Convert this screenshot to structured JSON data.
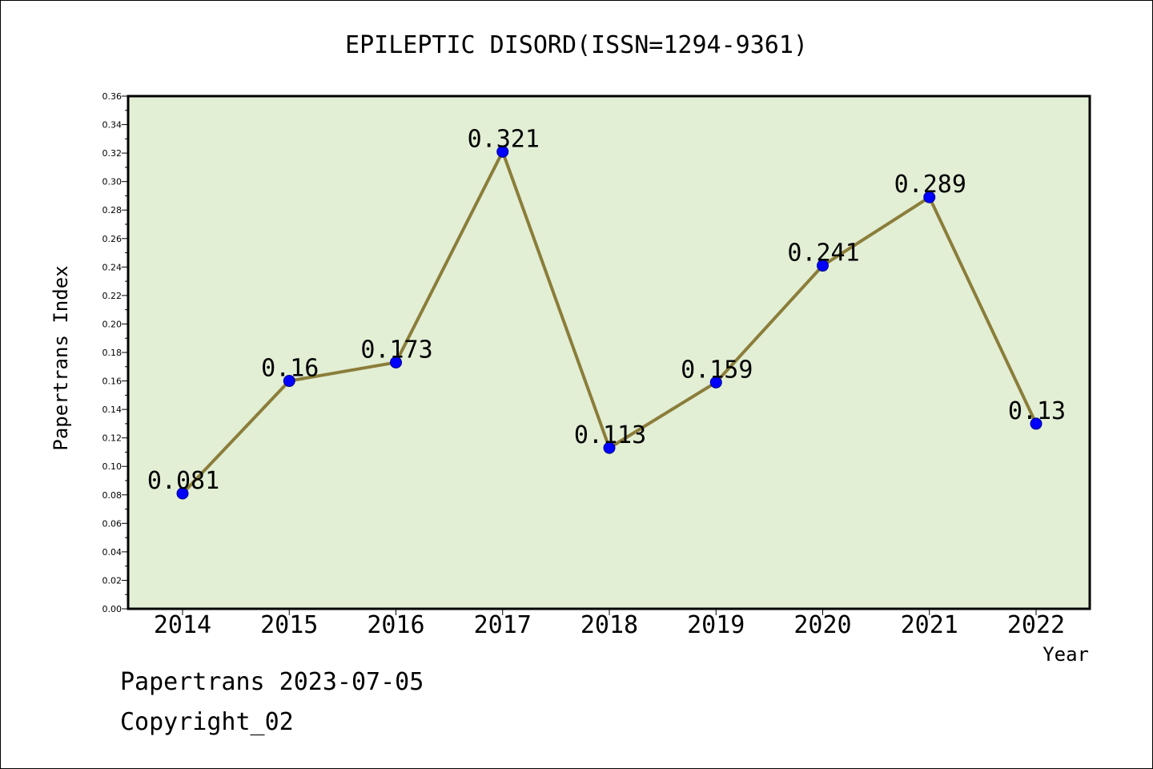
{
  "chart_data": {
    "type": "line",
    "title": "EPILEPTIC DISORD(ISSN=1294-9361)",
    "xlabel": "Year",
    "ylabel": "Papertrans Index",
    "categories": [
      "2014",
      "2015",
      "2016",
      "2017",
      "2018",
      "2019",
      "2020",
      "2021",
      "2022"
    ],
    "values": [
      0.081,
      0.16,
      0.173,
      0.321,
      0.113,
      0.159,
      0.241,
      0.289,
      0.13
    ],
    "data_labels": [
      "0.081",
      "0.16",
      "0.173",
      "0.321",
      "0.113",
      "0.159",
      "0.241",
      "0.289",
      "0.13"
    ],
    "ylim": [
      0,
      0.36
    ],
    "yticks": [
      "0.00",
      "0.02",
      "0.04",
      "0.06",
      "0.08",
      "0.10",
      "0.12",
      "0.14",
      "0.16",
      "0.18",
      "0.20",
      "0.22",
      "0.24",
      "0.26",
      "0.28",
      "0.30",
      "0.32",
      "0.34",
      "0.36"
    ],
    "grid": false,
    "colors": {
      "plot_background": "#e2efd5",
      "line": "#8b7d3a",
      "marker": "#0000ff"
    }
  },
  "footer": {
    "line1": "Papertrans 2023-07-05",
    "line2": "Copyright_02"
  }
}
